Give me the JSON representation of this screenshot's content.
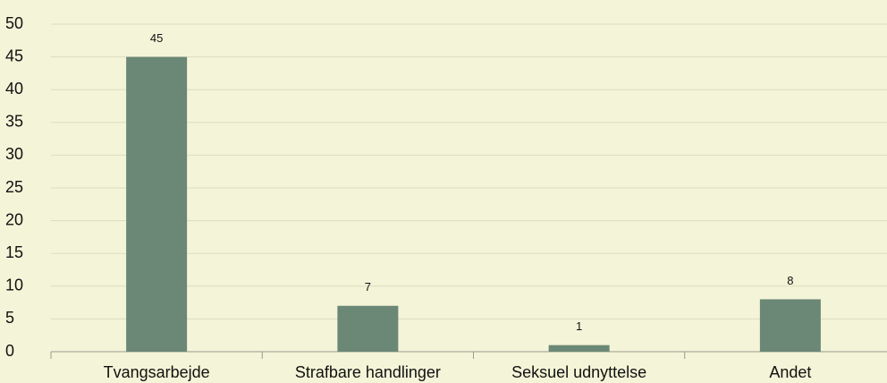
{
  "chart_data": {
    "type": "bar",
    "categories": [
      "Tvangsarbejde",
      "Strafbare handlinger",
      "Seksuel udnyttelse",
      "Andet"
    ],
    "values": [
      45,
      7,
      1,
      8
    ],
    "color": "#6b8775",
    "ylim": [
      0,
      50
    ],
    "yticks": [
      0,
      5,
      10,
      15,
      20,
      25,
      30,
      35,
      40,
      45,
      50
    ],
    "grid": true,
    "data_labels": true
  }
}
